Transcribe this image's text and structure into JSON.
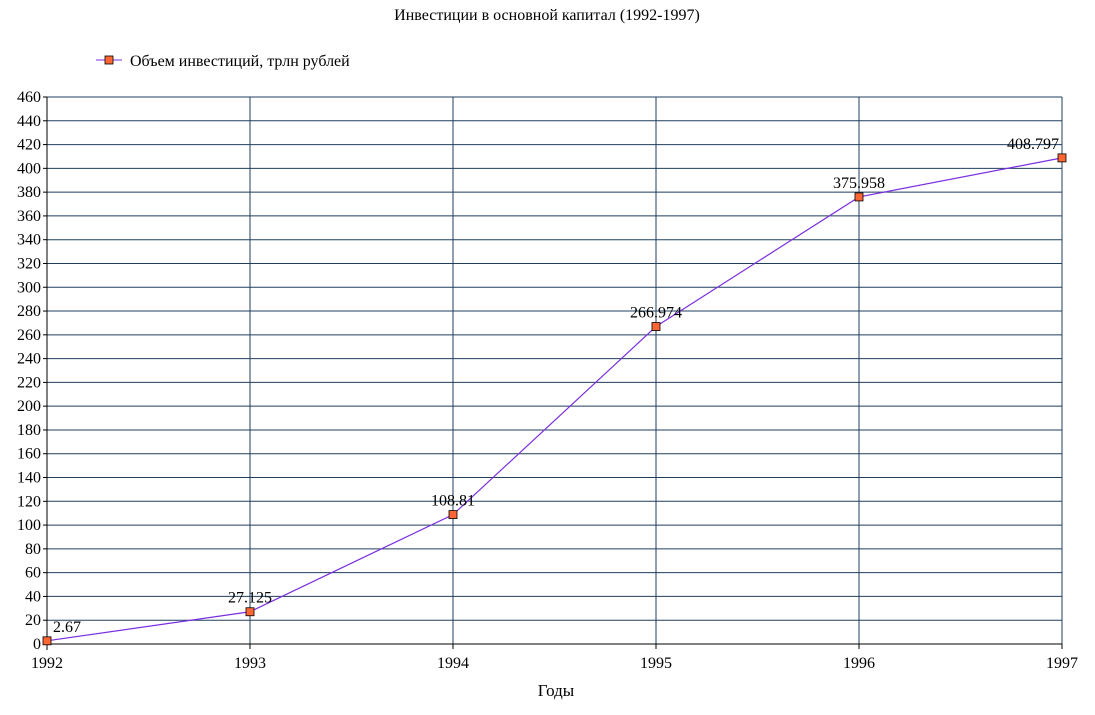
{
  "chart_data": {
    "type": "line",
    "title": "Инвестиции в основной капитал (1992-1997)",
    "xlabel": "Годы",
    "ylabel": "",
    "x": [
      "1992",
      "1993",
      "1994",
      "1995",
      "1996",
      "1997"
    ],
    "series": [
      {
        "name": "Объем инвестиций, трлн рублей",
        "values": [
          2.67,
          27.125,
          108.81,
          266.974,
          375.958,
          408.797
        ],
        "labels": [
          "2.67",
          "27.125",
          "108.81",
          "266.974",
          "375.958",
          "408.797"
        ],
        "line_color": "#7b2fe0",
        "marker_color": "#ff6633",
        "marker": "square"
      }
    ],
    "ylim": [
      0,
      460
    ],
    "ystep": 20,
    "grid": true,
    "grid_color": "#1f3f5f",
    "legend_position": "top-left"
  }
}
